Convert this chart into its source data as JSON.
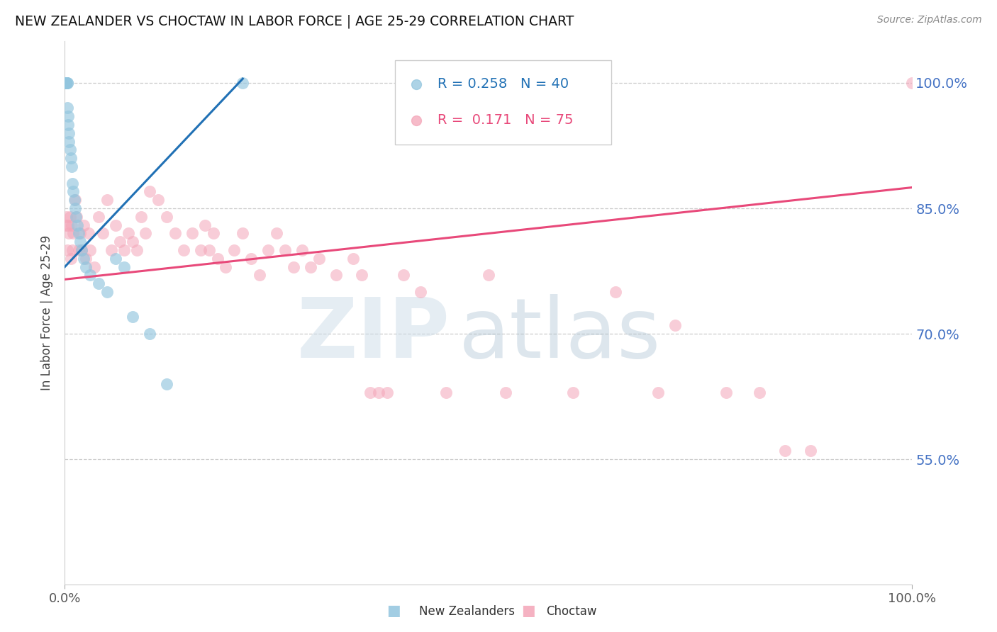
{
  "title": "NEW ZEALANDER VS CHOCTAW IN LABOR FORCE | AGE 25-29 CORRELATION CHART",
  "source": "Source: ZipAtlas.com",
  "ylabel": "In Labor Force | Age 25-29",
  "legend_blue_r": "0.258",
  "legend_blue_n": "40",
  "legend_pink_r": "0.171",
  "legend_pink_n": "75",
  "legend_blue_label": "New Zealanders",
  "legend_pink_label": "Choctaw",
  "xmin": 0.0,
  "xmax": 1.0,
  "ymin": 0.4,
  "ymax": 1.05,
  "yticks": [
    0.55,
    0.7,
    0.85,
    1.0
  ],
  "ytick_labels": [
    "55.0%",
    "70.0%",
    "85.0%",
    "100.0%"
  ],
  "blue_color": "#92c5de",
  "pink_color": "#f4a5b8",
  "blue_line_color": "#2171b5",
  "pink_line_color": "#e8497a",
  "grid_color": "#cccccc",
  "title_color": "#111111",
  "right_label_color": "#4472c4",
  "blue_trend_x0": 0.0,
  "blue_trend_x1": 0.21,
  "blue_trend_y0": 0.78,
  "blue_trend_y1": 1.005,
  "pink_trend_x0": 0.0,
  "pink_trend_x1": 1.0,
  "pink_trend_y0": 0.765,
  "pink_trend_y1": 0.875,
  "blue_x": [
    0.001,
    0.001,
    0.001,
    0.001,
    0.001,
    0.001,
    0.001,
    0.001,
    0.001,
    0.001,
    0.003,
    0.003,
    0.003,
    0.004,
    0.004,
    0.005,
    0.005,
    0.006,
    0.007,
    0.008,
    0.009,
    0.01,
    0.011,
    0.012,
    0.013,
    0.015,
    0.016,
    0.018,
    0.02,
    0.022,
    0.025,
    0.03,
    0.04,
    0.05,
    0.06,
    0.07,
    0.08,
    0.1,
    0.12,
    0.21
  ],
  "blue_y": [
    1.0,
    1.0,
    1.0,
    1.0,
    1.0,
    1.0,
    1.0,
    1.0,
    1.0,
    1.0,
    1.0,
    1.0,
    0.97,
    0.96,
    0.95,
    0.94,
    0.93,
    0.92,
    0.91,
    0.9,
    0.88,
    0.87,
    0.86,
    0.85,
    0.84,
    0.83,
    0.82,
    0.81,
    0.8,
    0.79,
    0.78,
    0.77,
    0.76,
    0.75,
    0.79,
    0.78,
    0.72,
    0.7,
    0.64,
    1.0
  ],
  "pink_x": [
    0.001,
    0.002,
    0.003,
    0.004,
    0.005,
    0.006,
    0.007,
    0.008,
    0.009,
    0.01,
    0.012,
    0.014,
    0.016,
    0.018,
    0.02,
    0.022,
    0.025,
    0.028,
    0.03,
    0.035,
    0.04,
    0.045,
    0.05,
    0.055,
    0.06,
    0.065,
    0.07,
    0.075,
    0.08,
    0.085,
    0.09,
    0.095,
    0.1,
    0.11,
    0.12,
    0.13,
    0.14,
    0.15,
    0.16,
    0.165,
    0.17,
    0.175,
    0.18,
    0.19,
    0.2,
    0.21,
    0.22,
    0.23,
    0.24,
    0.25,
    0.26,
    0.27,
    0.28,
    0.29,
    0.3,
    0.32,
    0.34,
    0.35,
    0.36,
    0.37,
    0.38,
    0.4,
    0.42,
    0.45,
    0.5,
    0.52,
    0.6,
    0.65,
    0.7,
    0.72,
    0.78,
    0.82,
    0.85,
    0.88,
    1.0
  ],
  "pink_y": [
    0.83,
    0.84,
    0.8,
    0.83,
    0.82,
    0.84,
    0.79,
    0.83,
    0.8,
    0.82,
    0.86,
    0.84,
    0.8,
    0.82,
    0.8,
    0.83,
    0.79,
    0.82,
    0.8,
    0.78,
    0.84,
    0.82,
    0.86,
    0.8,
    0.83,
    0.81,
    0.8,
    0.82,
    0.81,
    0.8,
    0.84,
    0.82,
    0.87,
    0.86,
    0.84,
    0.82,
    0.8,
    0.82,
    0.8,
    0.83,
    0.8,
    0.82,
    0.79,
    0.78,
    0.8,
    0.82,
    0.79,
    0.77,
    0.8,
    0.82,
    0.8,
    0.78,
    0.8,
    0.78,
    0.79,
    0.77,
    0.79,
    0.77,
    0.63,
    0.63,
    0.63,
    0.77,
    0.75,
    0.63,
    0.77,
    0.63,
    0.63,
    0.75,
    0.63,
    0.71,
    0.63,
    0.63,
    0.56,
    0.56,
    1.0
  ]
}
